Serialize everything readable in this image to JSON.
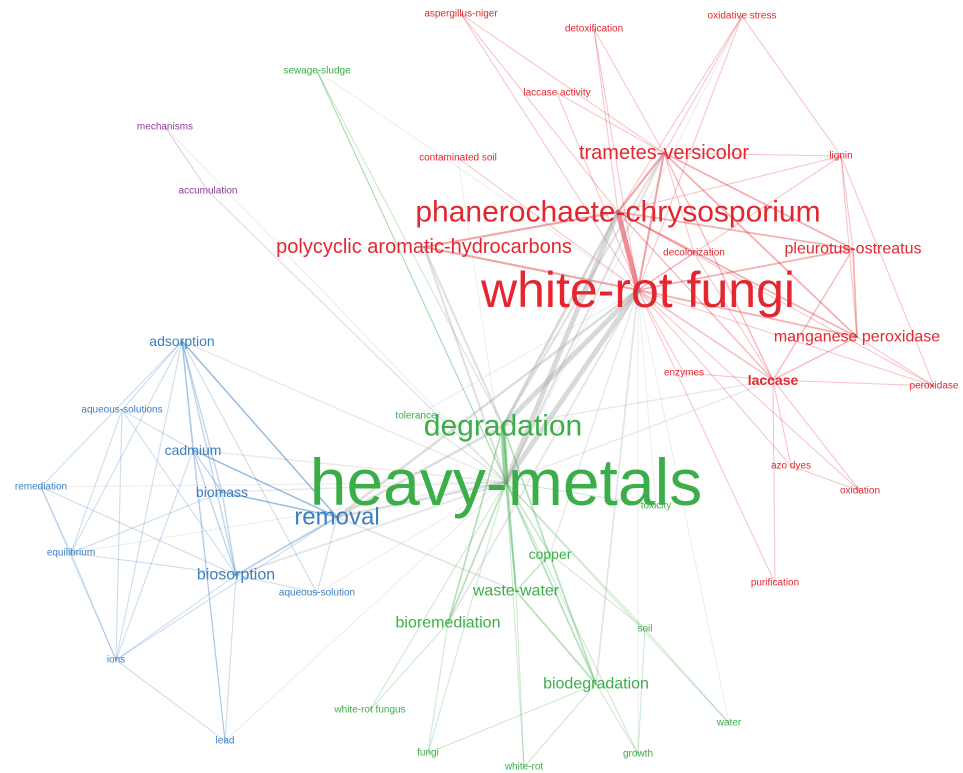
{
  "colors": {
    "red": "#e3262f",
    "green": "#3cae49",
    "blue": "#3a7fc0",
    "purple": "#8e3a9a",
    "gray_edge": "#9a9a9a"
  },
  "nodes": [
    {
      "id": "aspergillus-niger",
      "label": "aspergillus-niger",
      "cluster": "red",
      "weight": 1
    },
    {
      "id": "detoxification",
      "label": "detoxification",
      "cluster": "red",
      "weight": 1
    },
    {
      "id": "oxidative-stress",
      "label": "oxidative stress",
      "cluster": "red",
      "weight": 1
    },
    {
      "id": "laccase-activity",
      "label": "laccase activity",
      "cluster": "red",
      "weight": 1
    },
    {
      "id": "contaminated-soil",
      "label": "contaminated soil",
      "cluster": "red",
      "weight": 1
    },
    {
      "id": "trametes-versicolor",
      "label": "trametes-versicolor",
      "cluster": "red",
      "weight": 4
    },
    {
      "id": "lignin",
      "label": "lignin",
      "cluster": "red",
      "weight": 1
    },
    {
      "id": "phanerochaete-chrysosporium",
      "label": "phanerochaete-chrysosporium",
      "cluster": "red",
      "weight": 7
    },
    {
      "id": "polycyclic-aromatic-hydrocarbons",
      "label": "polycyclic aromatic-hydrocarbons",
      "cluster": "red",
      "weight": 4
    },
    {
      "id": "decolorization",
      "label": "decolorization",
      "cluster": "red",
      "weight": 1
    },
    {
      "id": "pleurotus-ostreatus",
      "label": "pleurotus-ostreatus",
      "cluster": "red",
      "weight": 3
    },
    {
      "id": "white-rot-fungi",
      "label": "white-rot fungi",
      "cluster": "red",
      "weight": 10
    },
    {
      "id": "manganese-peroxidase",
      "label": "manganese peroxidase",
      "cluster": "red",
      "weight": 3
    },
    {
      "id": "enzymes",
      "label": "enzymes",
      "cluster": "red",
      "weight": 1
    },
    {
      "id": "laccase",
      "label": "laccase",
      "cluster": "red",
      "weight": 2
    },
    {
      "id": "peroxidase",
      "label": "peroxidase",
      "cluster": "red",
      "weight": 1
    },
    {
      "id": "azo-dyes",
      "label": "azo dyes",
      "cluster": "red",
      "weight": 1
    },
    {
      "id": "oxidation",
      "label": "oxidation",
      "cluster": "red",
      "weight": 1
    },
    {
      "id": "purification",
      "label": "purification",
      "cluster": "red",
      "weight": 1
    },
    {
      "id": "sewage-sludge",
      "label": "sewage-sludge",
      "cluster": "green",
      "weight": 1
    },
    {
      "id": "tolerance",
      "label": "tolerance",
      "cluster": "green",
      "weight": 1
    },
    {
      "id": "degradation",
      "label": "degradation",
      "cluster": "green",
      "weight": 6
    },
    {
      "id": "heavy-metals",
      "label": "heavy-metals",
      "cluster": "green",
      "weight": 12
    },
    {
      "id": "toxicity",
      "label": "toxicity",
      "cluster": "green",
      "weight": 1
    },
    {
      "id": "copper",
      "label": "copper",
      "cluster": "green",
      "weight": 2
    },
    {
      "id": "waste-water",
      "label": "waste-water",
      "cluster": "green",
      "weight": 3
    },
    {
      "id": "bioremediation",
      "label": "bioremediation",
      "cluster": "green",
      "weight": 3
    },
    {
      "id": "soil",
      "label": "soil",
      "cluster": "green",
      "weight": 1
    },
    {
      "id": "biodegradation",
      "label": "biodegradation",
      "cluster": "green",
      "weight": 3
    },
    {
      "id": "white-rot-fungus",
      "label": "white-rot fungus",
      "cluster": "green",
      "weight": 1
    },
    {
      "id": "water",
      "label": "water",
      "cluster": "green",
      "weight": 1
    },
    {
      "id": "fungi",
      "label": "fungi",
      "cluster": "green",
      "weight": 1
    },
    {
      "id": "white-rot",
      "label": "white-rot",
      "cluster": "green",
      "weight": 1
    },
    {
      "id": "growth",
      "label": "growth",
      "cluster": "green",
      "weight": 1
    },
    {
      "id": "adsorption",
      "label": "adsorption",
      "cluster": "blue",
      "weight": 2
    },
    {
      "id": "aqueous-solutions",
      "label": "aqueous-solutions",
      "cluster": "blue",
      "weight": 1
    },
    {
      "id": "cadmium",
      "label": "cadmium",
      "cluster": "blue",
      "weight": 2
    },
    {
      "id": "remediation",
      "label": "remediation",
      "cluster": "blue",
      "weight": 1
    },
    {
      "id": "biomass",
      "label": "biomass",
      "cluster": "blue",
      "weight": 2
    },
    {
      "id": "removal",
      "label": "removal",
      "cluster": "blue",
      "weight": 5
    },
    {
      "id": "equilibrium",
      "label": "equilibrium",
      "cluster": "blue",
      "weight": 1
    },
    {
      "id": "biosorption",
      "label": "biosorption",
      "cluster": "blue",
      "weight": 3
    },
    {
      "id": "aqueous-solution",
      "label": "aqueous-solution",
      "cluster": "blue",
      "weight": 1
    },
    {
      "id": "ions",
      "label": "ions",
      "cluster": "blue",
      "weight": 1
    },
    {
      "id": "lead",
      "label": "lead",
      "cluster": "blue",
      "weight": 1
    },
    {
      "id": "mechanisms",
      "label": "mechanisms",
      "cluster": "purple",
      "weight": 1
    },
    {
      "id": "accumulation",
      "label": "accumulation",
      "cluster": "purple",
      "weight": 1
    }
  ],
  "edges": [
    [
      "white-rot-fungi",
      "phanerochaete-chrysosporium"
    ],
    [
      "white-rot-fungi",
      "trametes-versicolor"
    ],
    [
      "white-rot-fungi",
      "polycyclic-aromatic-hydrocarbons"
    ],
    [
      "white-rot-fungi",
      "pleurotus-ostreatus"
    ],
    [
      "white-rot-fungi",
      "manganese-peroxidase"
    ],
    [
      "white-rot-fungi",
      "laccase"
    ],
    [
      "white-rot-fungi",
      "enzymes"
    ],
    [
      "white-rot-fungi",
      "lignin"
    ],
    [
      "white-rot-fungi",
      "decolorization"
    ],
    [
      "white-rot-fungi",
      "aspergillus-niger"
    ],
    [
      "white-rot-fungi",
      "detoxification"
    ],
    [
      "white-rot-fungi",
      "oxidative-stress"
    ],
    [
      "white-rot-fungi",
      "laccase-activity"
    ],
    [
      "white-rot-fungi",
      "contaminated-soil"
    ],
    [
      "white-rot-fungi",
      "peroxidase"
    ],
    [
      "white-rot-fungi",
      "azo-dyes"
    ],
    [
      "white-rot-fungi",
      "oxidation"
    ],
    [
      "white-rot-fungi",
      "purification"
    ],
    [
      "phanerochaete-chrysosporium",
      "trametes-versicolor"
    ],
    [
      "phanerochaete-chrysosporium",
      "manganese-peroxidase"
    ],
    [
      "phanerochaete-chrysosporium",
      "lignin"
    ],
    [
      "phanerochaete-chrysosporium",
      "pleurotus-ostreatus"
    ],
    [
      "phanerochaete-chrysosporium",
      "laccase"
    ],
    [
      "phanerochaete-chrysosporium",
      "polycyclic-aromatic-hydrocarbons"
    ],
    [
      "phanerochaete-chrysosporium",
      "aspergillus-niger"
    ],
    [
      "phanerochaete-chrysosporium",
      "detoxification"
    ],
    [
      "phanerochaete-chrysosporium",
      "decolorization"
    ],
    [
      "phanerochaete-chrysosporium",
      "oxidative-stress"
    ],
    [
      "phanerochaete-chrysosporium",
      "peroxidase"
    ],
    [
      "trametes-versicolor",
      "laccase"
    ],
    [
      "trametes-versicolor",
      "pleurotus-ostreatus"
    ],
    [
      "trametes-versicolor",
      "lignin"
    ],
    [
      "trametes-versicolor",
      "manganese-peroxidase"
    ],
    [
      "trametes-versicolor",
      "aspergillus-niger"
    ],
    [
      "trametes-versicolor",
      "laccase-activity"
    ],
    [
      "trametes-versicolor",
      "oxidative-stress"
    ],
    [
      "trametes-versicolor",
      "decolorization"
    ],
    [
      "trametes-versicolor",
      "detoxification"
    ],
    [
      "pleurotus-ostreatus",
      "laccase"
    ],
    [
      "pleurotus-ostreatus",
      "manganese-peroxidase"
    ],
    [
      "pleurotus-ostreatus",
      "lignin"
    ],
    [
      "manganese-peroxidase",
      "laccase"
    ],
    [
      "manganese-peroxidase",
      "lignin"
    ],
    [
      "manganese-peroxidase",
      "peroxidase"
    ],
    [
      "laccase",
      "azo-dyes"
    ],
    [
      "laccase",
      "oxidation"
    ],
    [
      "laccase",
      "purification"
    ],
    [
      "laccase",
      "enzymes"
    ],
    [
      "laccase",
      "peroxidase"
    ],
    [
      "laccase",
      "decolorization"
    ],
    [
      "lignin",
      "peroxidase"
    ],
    [
      "azo-dyes",
      "oxidation"
    ],
    [
      "oxidative-stress",
      "lignin"
    ],
    [
      "heavy-metals",
      "white-rot-fungi"
    ],
    [
      "heavy-metals",
      "phanerochaete-chrysosporium"
    ],
    [
      "heavy-metals",
      "trametes-versicolor"
    ],
    [
      "heavy-metals",
      "polycyclic-aromatic-hydrocarbons"
    ],
    [
      "heavy-metals",
      "laccase"
    ],
    [
      "heavy-metals",
      "degradation"
    ],
    [
      "heavy-metals",
      "removal"
    ],
    [
      "heavy-metals",
      "biosorption"
    ],
    [
      "heavy-metals",
      "cadmium"
    ],
    [
      "heavy-metals",
      "biomass"
    ],
    [
      "heavy-metals",
      "adsorption"
    ],
    [
      "heavy-metals",
      "copper"
    ],
    [
      "heavy-metals",
      "waste-water"
    ],
    [
      "heavy-metals",
      "bioremediation"
    ],
    [
      "heavy-metals",
      "biodegradation"
    ],
    [
      "heavy-metals",
      "soil"
    ],
    [
      "heavy-metals",
      "toxicity"
    ],
    [
      "heavy-metals",
      "tolerance"
    ],
    [
      "heavy-metals",
      "fungi"
    ],
    [
      "heavy-metals",
      "white-rot"
    ],
    [
      "heavy-metals",
      "growth"
    ],
    [
      "heavy-metals",
      "water"
    ],
    [
      "heavy-metals",
      "white-rot-fungus"
    ],
    [
      "heavy-metals",
      "sewage-sludge"
    ],
    [
      "heavy-metals",
      "accumulation"
    ],
    [
      "heavy-metals",
      "remediation"
    ],
    [
      "heavy-metals",
      "aqueous-solution"
    ],
    [
      "heavy-metals",
      "contaminated-soil"
    ],
    [
      "heavy-metals",
      "oxidative-stress"
    ],
    [
      "heavy-metals",
      "lead"
    ],
    [
      "heavy-metals",
      "equilibrium"
    ],
    [
      "degradation",
      "white-rot-fungi"
    ],
    [
      "degradation",
      "phanerochaete-chrysosporium"
    ],
    [
      "degradation",
      "laccase"
    ],
    [
      "degradation",
      "biodegradation"
    ],
    [
      "degradation",
      "bioremediation"
    ],
    [
      "degradation",
      "waste-water"
    ],
    [
      "degradation",
      "polycyclic-aromatic-hydrocarbons"
    ],
    [
      "degradation",
      "trametes-versicolor"
    ],
    [
      "removal",
      "biosorption"
    ],
    [
      "removal",
      "adsorption"
    ],
    [
      "removal",
      "cadmium"
    ],
    [
      "removal",
      "biomass"
    ],
    [
      "removal",
      "white-rot-fungi"
    ],
    [
      "removal",
      "waste-water"
    ],
    [
      "removal",
      "aqueous-solution"
    ],
    [
      "removal",
      "degradation"
    ],
    [
      "removal",
      "ions"
    ],
    [
      "biodegradation",
      "white-rot-fungi"
    ],
    [
      "biodegradation",
      "fungi"
    ],
    [
      "biodegradation",
      "white-rot"
    ],
    [
      "biodegradation",
      "growth"
    ],
    [
      "bioremediation",
      "white-rot-fungi"
    ],
    [
      "bioremediation",
      "white-rot-fungus"
    ],
    [
      "bioremediation",
      "fungi"
    ],
    [
      "waste-water",
      "copper"
    ],
    [
      "waste-water",
      "biodegradation"
    ],
    [
      "waste-water",
      "white-rot"
    ],
    [
      "copper",
      "white-rot-fungi"
    ],
    [
      "copper",
      "soil"
    ],
    [
      "soil",
      "water"
    ],
    [
      "soil",
      "growth"
    ],
    [
      "toxicity",
      "white-rot-fungi"
    ],
    [
      "sewage-sludge",
      "degradation"
    ],
    [
      "sewage-sludge",
      "white-rot-fungi"
    ],
    [
      "sewage-sludge",
      "heavy-metals"
    ],
    [
      "tolerance",
      "white-rot-fungi"
    ],
    [
      "water",
      "white-rot-fungi"
    ],
    [
      "growth",
      "white-rot-fungi"
    ],
    [
      "adsorption",
      "aqueous-solutions"
    ],
    [
      "adsorption",
      "cadmium"
    ],
    [
      "adsorption",
      "biomass"
    ],
    [
      "adsorption",
      "biosorption"
    ],
    [
      "adsorption",
      "equilibrium"
    ],
    [
      "adsorption",
      "ions"
    ],
    [
      "adsorption",
      "remediation"
    ],
    [
      "adsorption",
      "removal"
    ],
    [
      "adsorption",
      "aqueous-solution"
    ],
    [
      "adsorption",
      "lead"
    ],
    [
      "cadmium",
      "biomass"
    ],
    [
      "cadmium",
      "biosorption"
    ],
    [
      "cadmium",
      "lead"
    ],
    [
      "cadmium",
      "ions"
    ],
    [
      "cadmium",
      "removal"
    ],
    [
      "cadmium",
      "aqueous-solutions"
    ],
    [
      "biomass",
      "biosorption"
    ],
    [
      "biomass",
      "removal"
    ],
    [
      "biomass",
      "equilibrium"
    ],
    [
      "biosorption",
      "equilibrium"
    ],
    [
      "biosorption",
      "ions"
    ],
    [
      "biosorption",
      "lead"
    ],
    [
      "biosorption",
      "aqueous-solutions"
    ],
    [
      "biosorption",
      "aqueous-solution"
    ],
    [
      "biosorption",
      "remediation"
    ],
    [
      "remediation",
      "equilibrium"
    ],
    [
      "remediation",
      "ions"
    ],
    [
      "equilibrium",
      "ions"
    ],
    [
      "aqueous-solutions",
      "equilibrium"
    ],
    [
      "ions",
      "lead"
    ],
    [
      "aqueous-solutions",
      "ions"
    ],
    [
      "mechanisms",
      "accumulation"
    ],
    [
      "accumulation",
      "heavy-metals"
    ],
    [
      "mechanisms",
      "heavy-metals"
    ]
  ]
}
